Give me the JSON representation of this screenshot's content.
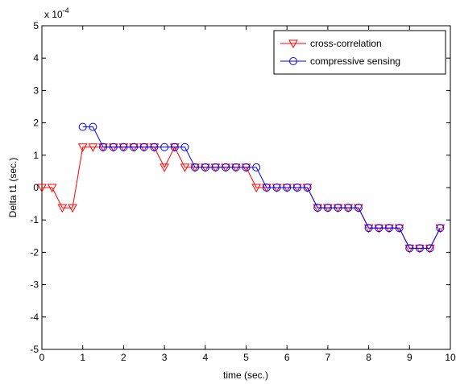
{
  "chart_data": {
    "type": "line",
    "xlabel": "time (sec.)",
    "ylabel": "Delta t1 (sec.)",
    "y_multiplier": {
      "base": "x 10",
      "exponent": "-4"
    },
    "x": [
      0,
      0.25,
      0.5,
      0.75,
      1,
      1.25,
      1.5,
      1.75,
      2,
      2.25,
      2.5,
      2.75,
      3,
      3.25,
      3.5,
      3.75,
      4,
      4.25,
      4.5,
      4.75,
      5,
      5.25,
      5.5,
      5.75,
      6,
      6.25,
      6.5,
      6.75,
      7,
      7.25,
      7.5,
      7.75,
      8,
      8.25,
      8.5,
      8.75,
      9,
      9.25,
      9.5,
      9.75
    ],
    "series": [
      {
        "name": "cross-correlation",
        "color": "#ff0000",
        "marker": "triangle-down",
        "values": [
          0,
          0,
          -0.625,
          -0.625,
          1.25,
          1.25,
          1.25,
          1.25,
          1.25,
          1.25,
          1.25,
          1.25,
          0.625,
          1.25,
          0.625,
          0.625,
          0.625,
          0.625,
          0.625,
          0.625,
          0.625,
          0,
          0,
          0,
          0,
          0,
          0,
          -0.625,
          -0.625,
          -0.625,
          -0.625,
          -0.625,
          -1.25,
          -1.25,
          -1.25,
          -1.25,
          -1.875,
          -1.875,
          -1.875,
          -1.25
        ]
      },
      {
        "name": "compressive sensing",
        "color": "#0000ff",
        "marker": "circle",
        "values": [
          null,
          null,
          null,
          null,
          1.875,
          1.875,
          1.25,
          1.25,
          1.25,
          1.25,
          1.25,
          1.25,
          1.25,
          1.25,
          1.25,
          0.625,
          0.625,
          0.625,
          0.625,
          0.625,
          0.625,
          0.625,
          0,
          0,
          0,
          0,
          0,
          -0.625,
          -0.625,
          -0.625,
          -0.625,
          -0.625,
          -1.25,
          -1.25,
          -1.25,
          -1.25,
          -1.875,
          -1.875,
          -1.875,
          -1.25
        ]
      }
    ],
    "xlim": [
      0,
      10
    ],
    "xticks": [
      0,
      1,
      2,
      3,
      4,
      5,
      6,
      7,
      8,
      9,
      10
    ],
    "ylim": [
      -5,
      5
    ],
    "yticks": [
      -5,
      -4,
      -3,
      -2,
      -1,
      0,
      1,
      2,
      3,
      4,
      5
    ],
    "grid": false,
    "legend": "upper right"
  }
}
